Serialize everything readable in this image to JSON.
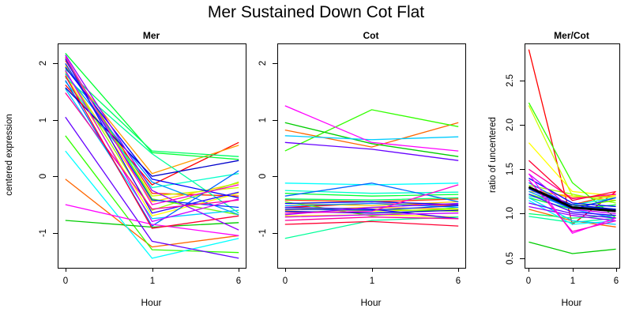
{
  "title": "Mer Sustained Down Cot Flat",
  "chart_data": [
    {
      "type": "line",
      "title": "Mer",
      "xlabel": "Hour",
      "ylabel": "centered expression",
      "categories": [
        "0",
        "1",
        "6"
      ],
      "x_positions": [
        0.037,
        0.5,
        0.963
      ],
      "ylim": [
        -1.62,
        2.34
      ],
      "grid": false,
      "legend": "none",
      "yticks": [
        {
          "value": -1,
          "label": "-1"
        },
        {
          "value": 0,
          "label": "0"
        },
        {
          "value": 1,
          "label": "1"
        },
        {
          "value": 2,
          "label": "2"
        }
      ],
      "series": [
        {
          "color": "#FF0000",
          "values": [
            1.62,
            -0.15,
            0.6
          ]
        },
        {
          "color": "#FF3300",
          "values": [
            2.05,
            -0.3,
            -0.35
          ]
        },
        {
          "color": "#FF6600",
          "values": [
            -0.05,
            -1.25,
            -1.05
          ]
        },
        {
          "color": "#FF9900",
          "values": [
            1.95,
            0.05,
            0.55
          ]
        },
        {
          "color": "#FFCC00",
          "values": [
            1.85,
            -0.45,
            -0.12
          ]
        },
        {
          "color": "#FFFF00",
          "values": [
            1.8,
            -0.7,
            -0.3
          ]
        },
        {
          "color": "#CCFF00",
          "values": [
            1.98,
            -0.35,
            -0.2
          ]
        },
        {
          "color": "#99FF00",
          "values": [
            1.86,
            -0.6,
            -0.1
          ]
        },
        {
          "color": "#66FF00",
          "values": [
            2.1,
            -0.4,
            -0.68
          ]
        },
        {
          "color": "#33FF00",
          "values": [
            0.72,
            -1.3,
            -1.35
          ]
        },
        {
          "color": "#00CC00",
          "values": [
            -0.78,
            -0.9,
            -0.82
          ]
        },
        {
          "color": "#00FF33",
          "values": [
            2.18,
            0.42,
            0.3
          ]
        },
        {
          "color": "#00FF66",
          "values": [
            1.9,
            0.45,
            0.35
          ]
        },
        {
          "color": "#00FF99",
          "values": [
            1.75,
            0.4,
            -0.65
          ]
        },
        {
          "color": "#00FFCC",
          "values": [
            1.68,
            -0.2,
            0.05
          ]
        },
        {
          "color": "#00FFFF",
          "values": [
            0.45,
            -1.45,
            -1.1
          ]
        },
        {
          "color": "#00CCFF",
          "values": [
            1.55,
            -0.75,
            -0.6
          ]
        },
        {
          "color": "#0099FF",
          "values": [
            1.82,
            -0.1,
            -0.68
          ]
        },
        {
          "color": "#0066FF",
          "values": [
            1.7,
            -0.88,
            0.1
          ]
        },
        {
          "color": "#0033FF",
          "values": [
            2.0,
            -0.42,
            -0.55
          ]
        },
        {
          "color": "#0000FF",
          "values": [
            1.93,
            -0.05,
            -0.38
          ]
        },
        {
          "color": "#0000CC",
          "values": [
            1.57,
            0.0,
            0.28
          ]
        },
        {
          "color": "#3300FF",
          "values": [
            2.08,
            -0.65,
            -0.28
          ]
        },
        {
          "color": "#6600FF",
          "values": [
            1.05,
            -1.15,
            -1.45
          ]
        },
        {
          "color": "#9900FF",
          "values": [
            2.15,
            -0.25,
            -0.95
          ]
        },
        {
          "color": "#CC00FF",
          "values": [
            1.88,
            -0.8,
            -0.4
          ]
        },
        {
          "color": "#FF00FF",
          "values": [
            -0.5,
            -0.85,
            -1.05
          ]
        },
        {
          "color": "#FF00CC",
          "values": [
            2.12,
            -0.5,
            -0.15
          ]
        },
        {
          "color": "#FF0099",
          "values": [
            1.48,
            -0.58,
            -0.42
          ]
        },
        {
          "color": "#FF0033",
          "values": [
            1.78,
            -0.92,
            -0.7
          ]
        }
      ]
    },
    {
      "type": "line",
      "title": "Cot",
      "xlabel": "Hour",
      "ylabel": "",
      "categories": [
        "0",
        "1",
        "6"
      ],
      "x_positions": [
        0.037,
        0.5,
        0.963
      ],
      "ylim": [
        -1.62,
        2.34
      ],
      "grid": false,
      "legend": "none",
      "yticks": [
        {
          "value": -1,
          "label": "-1"
        },
        {
          "value": 0,
          "label": "0"
        },
        {
          "value": 1,
          "label": "1"
        },
        {
          "value": 2,
          "label": "2"
        }
      ],
      "series": [
        {
          "color": "#FF0000",
          "values": [
            -0.55,
            -0.48,
            -0.52
          ]
        },
        {
          "color": "#FF3300",
          "values": [
            -0.42,
            -0.45,
            -0.4
          ]
        },
        {
          "color": "#FF6600",
          "values": [
            0.82,
            0.52,
            0.95
          ]
        },
        {
          "color": "#FF9900",
          "values": [
            -0.6,
            -0.55,
            -0.58
          ]
        },
        {
          "color": "#FFCC00",
          "values": [
            -0.48,
            -0.52,
            -0.45
          ]
        },
        {
          "color": "#FFFF00",
          "values": [
            -0.7,
            -0.68,
            -0.72
          ]
        },
        {
          "color": "#CCFF00",
          "values": [
            -0.55,
            -0.62,
            -0.58
          ]
        },
        {
          "color": "#99FF00",
          "values": [
            -0.65,
            -0.58,
            -0.62
          ]
        },
        {
          "color": "#66FF00",
          "values": [
            -0.45,
            -0.7,
            -0.55
          ]
        },
        {
          "color": "#33FF00",
          "values": [
            0.45,
            1.18,
            0.88
          ]
        },
        {
          "color": "#00CC00",
          "values": [
            0.95,
            0.58,
            0.35
          ]
        },
        {
          "color": "#00FF33",
          "values": [
            -0.3,
            -0.35,
            -0.32
          ]
        },
        {
          "color": "#00FF66",
          "values": [
            -0.4,
            -0.42,
            -0.38
          ]
        },
        {
          "color": "#00FF99",
          "values": [
            -1.1,
            -0.78,
            -0.72
          ]
        },
        {
          "color": "#00FFCC",
          "values": [
            -0.25,
            -0.3,
            -0.28
          ]
        },
        {
          "color": "#00FFFF",
          "values": [
            -0.12,
            -0.15,
            -0.12
          ]
        },
        {
          "color": "#00CCFF",
          "values": [
            0.72,
            0.65,
            0.7
          ]
        },
        {
          "color": "#0099FF",
          "values": [
            -0.52,
            -0.48,
            -0.55
          ]
        },
        {
          "color": "#0066FF",
          "values": [
            -0.35,
            -0.12,
            -0.45
          ]
        },
        {
          "color": "#0033FF",
          "values": [
            -0.58,
            -0.6,
            -0.52
          ]
        },
        {
          "color": "#0000FF",
          "values": [
            -0.48,
            -0.45,
            -0.5
          ]
        },
        {
          "color": "#0000CC",
          "values": [
            -0.62,
            -0.65,
            -0.6
          ]
        },
        {
          "color": "#3300FF",
          "values": [
            -0.55,
            -0.58,
            -0.75
          ]
        },
        {
          "color": "#6600FF",
          "values": [
            0.6,
            0.48,
            0.28
          ]
        },
        {
          "color": "#9900FF",
          "values": [
            -0.68,
            -0.55,
            -0.48
          ]
        },
        {
          "color": "#CC00FF",
          "values": [
            -0.72,
            -0.68,
            -0.65
          ]
        },
        {
          "color": "#FF00FF",
          "values": [
            1.25,
            0.6,
            0.45
          ]
        },
        {
          "color": "#FF00CC",
          "values": [
            -0.65,
            -0.62,
            -0.15
          ]
        },
        {
          "color": "#FF0099",
          "values": [
            -0.78,
            -0.72,
            -0.75
          ]
        },
        {
          "color": "#FF0033",
          "values": [
            -0.85,
            -0.8,
            -0.88
          ]
        }
      ]
    },
    {
      "type": "line",
      "title": "Mer/Cot",
      "xlabel": "Hour",
      "ylabel": "ratio of uncentered",
      "categories": [
        "0",
        "1",
        "6"
      ],
      "x_positions": [
        0.037,
        0.5,
        0.963
      ],
      "ylim": [
        0.39,
        2.91
      ],
      "grid": false,
      "legend": "none",
      "yticks": [
        {
          "value": 0.5,
          "label": "0.5"
        },
        {
          "value": 1.0,
          "label": "1.0"
        },
        {
          "value": 1.5,
          "label": "1.5"
        },
        {
          "value": 2.0,
          "label": "2.0"
        },
        {
          "value": 2.5,
          "label": "2.5"
        }
      ],
      "series": [
        {
          "color": "#FF0000",
          "values": [
            2.85,
            0.88,
            1.25
          ]
        },
        {
          "color": "#FF3300",
          "values": [
            1.3,
            1.1,
            1.22
          ]
        },
        {
          "color": "#FF6600",
          "values": [
            1.05,
            0.92,
            0.85
          ]
        },
        {
          "color": "#FF9900",
          "values": [
            1.28,
            1.18,
            1.2
          ]
        },
        {
          "color": "#FFCC00",
          "values": [
            1.25,
            1.2,
            1.15
          ]
        },
        {
          "color": "#FFFF00",
          "values": [
            1.8,
            1.25,
            1.2
          ]
        },
        {
          "color": "#CCFF00",
          "values": [
            2.22,
            1.2,
            1.18
          ]
        },
        {
          "color": "#99FF00",
          "values": [
            1.32,
            1.22,
            1.12
          ]
        },
        {
          "color": "#66FF00",
          "values": [
            1.22,
            1.08,
            1.15
          ]
        },
        {
          "color": "#33FF00",
          "values": [
            2.25,
            1.35,
            0.95
          ]
        },
        {
          "color": "#00CC00",
          "values": [
            0.68,
            0.55,
            0.6
          ]
        },
        {
          "color": "#00FF33",
          "values": [
            1.18,
            1.05,
            1.1
          ]
        },
        {
          "color": "#00FF66",
          "values": [
            1.0,
            0.95,
            0.98
          ]
        },
        {
          "color": "#00FF99",
          "values": [
            0.97,
            0.9,
            0.95
          ]
        },
        {
          "color": "#00FFCC",
          "values": [
            1.2,
            1.1,
            1.18
          ]
        },
        {
          "color": "#00FFFF",
          "values": [
            1.15,
            0.88,
            0.92
          ]
        },
        {
          "color": "#00CCFF",
          "values": [
            1.18,
            0.92,
            0.88
          ]
        },
        {
          "color": "#0099FF",
          "values": [
            1.25,
            1.05,
            0.95
          ]
        },
        {
          "color": "#0066FF",
          "values": [
            1.35,
            1.08,
            1.05
          ]
        },
        {
          "color": "#0033FF",
          "values": [
            1.28,
            1.05,
            1.18
          ]
        },
        {
          "color": "#0000FF",
          "values": [
            1.4,
            1.12,
            1.08
          ]
        },
        {
          "color": "#0000CC",
          "values": [
            1.3,
            1.1,
            1.05
          ]
        },
        {
          "color": "#3300FF",
          "values": [
            1.22,
            1.02,
            0.98
          ]
        },
        {
          "color": "#6600FF",
          "values": [
            1.12,
            1.0,
            0.95
          ]
        },
        {
          "color": "#9900FF",
          "values": [
            1.08,
            0.98,
            0.92
          ]
        },
        {
          "color": "#CC00FF",
          "values": [
            1.45,
            1.05,
            1.0
          ]
        },
        {
          "color": "#FF00FF",
          "values": [
            1.45,
            0.78,
            0.95
          ]
        },
        {
          "color": "#FF00CC",
          "values": [
            1.38,
            0.8,
            0.92
          ]
        },
        {
          "color": "#FF0099",
          "values": [
            1.5,
            1.17,
            1.22
          ]
        },
        {
          "color": "#FF0033",
          "values": [
            1.6,
            1.15,
            1.25
          ]
        },
        {
          "color": "#000000",
          "lwd": 3,
          "values": [
            1.3,
            1.07,
            1.03
          ]
        }
      ]
    }
  ]
}
